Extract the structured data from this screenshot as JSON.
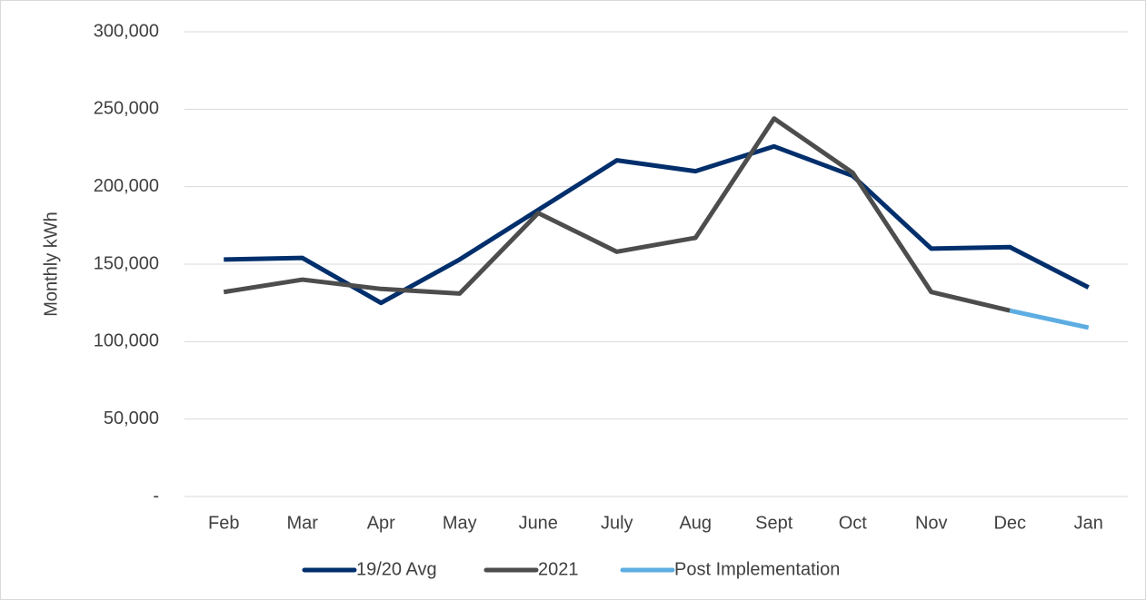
{
  "chart_data": {
    "type": "line",
    "y_label": "Monthly kWh",
    "categories": [
      "Feb",
      "Mar",
      "Apr",
      "May",
      "June",
      "July",
      "Aug",
      "Sept",
      "Oct",
      "Nov",
      "Dec",
      "Jan"
    ],
    "series": [
      {
        "name": "19/20 Avg",
        "color": "#002f6c",
        "values": [
          153000,
          154000,
          125000,
          153000,
          185000,
          217000,
          210000,
          226000,
          207000,
          160000,
          161000,
          135000
        ]
      },
      {
        "name": "2021",
        "color": "#4d4d4d",
        "values": [
          132000,
          140000,
          134000,
          131000,
          183000,
          158000,
          167000,
          244000,
          209000,
          132000,
          120000,
          null
        ]
      },
      {
        "name": "Post Implementation",
        "color": "#5dade2",
        "values": [
          null,
          null,
          null,
          null,
          null,
          null,
          null,
          null,
          null,
          null,
          120000,
          109000
        ]
      }
    ],
    "ylim": [
      0,
      300000
    ],
    "yticks": [
      {
        "value": 0,
        "label": "-"
      },
      {
        "value": 50000,
        "label": "50,000"
      },
      {
        "value": 100000,
        "label": "100,000"
      },
      {
        "value": 150000,
        "label": "150,000"
      },
      {
        "value": 200000,
        "label": "200,000"
      },
      {
        "value": 250000,
        "label": "250,000"
      },
      {
        "value": 300000,
        "label": "300,000"
      }
    ],
    "grid": true,
    "legend": "bottom"
  }
}
